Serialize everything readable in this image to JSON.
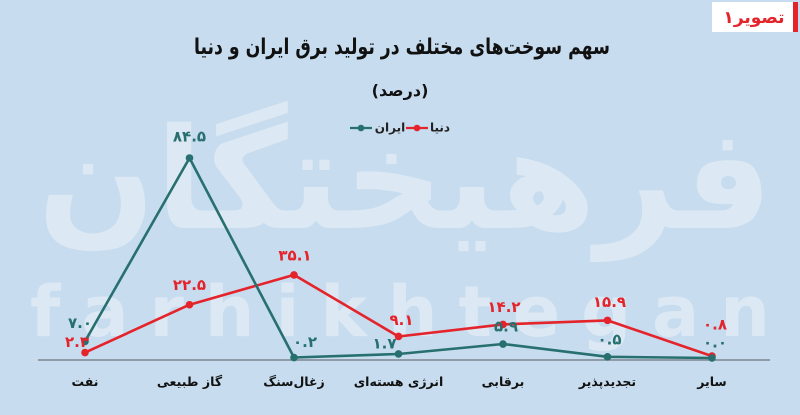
{
  "figure_label": "تصویر۱",
  "watermark": {
    "persian": "فرهیختگان",
    "latin": "farhikhtegan"
  },
  "colors": {
    "background": "#c7dcee",
    "label_box": "#ffffff",
    "label_bar": "#e4232b"
  },
  "chart_data": {
    "type": "line",
    "title": "سهم سوخت‌های مختلف در تولید برق ایران و دنیا",
    "subtitle": "(درصد)",
    "categories": [
      "نفت",
      "گاز طبیعی",
      "زغال‌سنگ",
      "انرژی هسته‌ای",
      "برقابی",
      "تجدیدپذیر",
      "سایر"
    ],
    "series": [
      {
        "name": "دنیا",
        "color": "#e4232b",
        "values": [
          2.3,
          22.5,
          35.1,
          9.1,
          14.2,
          15.9,
          0.8
        ],
        "labels": [
          "۲.۳",
          "۲۲.۵",
          "۳۵.۱",
          "۹.۱",
          "۱۴.۲",
          "۱۵.۹",
          "۰.۸"
        ]
      },
      {
        "name": "ایران",
        "color": "#27706f",
        "values": [
          7.0,
          84.5,
          0.2,
          1.7,
          5.9,
          0.5,
          0.0
        ],
        "labels": [
          "۷.۰",
          "۸۴.۵",
          "۰.۲",
          "۱.۷",
          "۵.۹",
          "۰.۵",
          "۰.۰"
        ]
      }
    ],
    "ylim": [
      0,
      100
    ],
    "grid": false,
    "legend": "top-center"
  }
}
